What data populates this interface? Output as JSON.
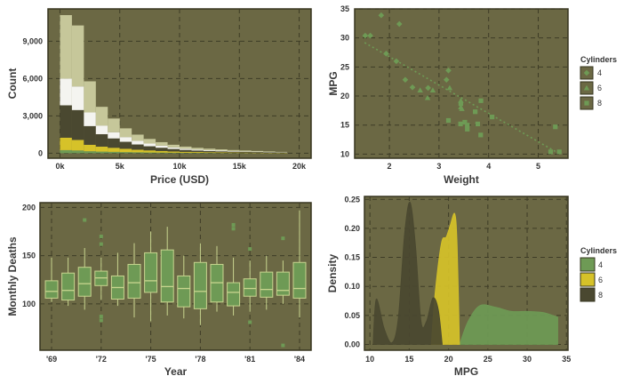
{
  "theme": {
    "panel_bg": "#6b6844",
    "panel_border": "#36341f",
    "grid": "#3e3c26",
    "green": "#6e9a55",
    "green_light": "#c8d58f",
    "yellow": "#d6c229",
    "dark": "#4a4830",
    "white": "#f4f4f0",
    "beige": "#c6c79a"
  },
  "chart_data": [
    {
      "type": "bar",
      "subtype": "stacked-histogram",
      "xlabel": "Price (USD)",
      "ylabel": "Count",
      "x_ticks": [
        0,
        5000,
        10000,
        15000,
        20000
      ],
      "x_tick_labels": [
        "0k",
        "5k",
        "10k",
        "15k",
        "20k"
      ],
      "y_ticks": [
        0,
        3000,
        6000,
        9000
      ],
      "y_tick_labels": [
        "0",
        "3,000",
        "6,000",
        "9,000"
      ],
      "xlim": [
        -1000,
        21000
      ],
      "ylim": [
        -400,
        11600
      ],
      "bin_width": 1000,
      "bin_starts": [
        0,
        1000,
        2000,
        3000,
        4000,
        5000,
        6000,
        7000,
        8000,
        9000,
        10000,
        11000,
        12000,
        13000,
        14000,
        15000,
        16000,
        17000,
        18000
      ],
      "series": [
        {
          "color": "green",
          "values": [
            250,
            220,
            160,
            130,
            110,
            90,
            75,
            60,
            50,
            42,
            35,
            30,
            25,
            20,
            18,
            15,
            12,
            10,
            8
          ]
        },
        {
          "color": "yellow",
          "values": [
            1000,
            850,
            520,
            400,
            330,
            270,
            210,
            170,
            130,
            100,
            80,
            65,
            55,
            45,
            40,
            35,
            30,
            25,
            18
          ]
        },
        {
          "color": "dark",
          "values": [
            2600,
            2400,
            1500,
            1000,
            750,
            560,
            420,
            330,
            260,
            200,
            150,
            120,
            100,
            85,
            70,
            60,
            50,
            40,
            30
          ]
        },
        {
          "color": "white",
          "values": [
            2150,
            1900,
            1100,
            700,
            500,
            380,
            290,
            220,
            170,
            130,
            100,
            80,
            70,
            60,
            50,
            40,
            35,
            30,
            22
          ]
        },
        {
          "color": "beige",
          "values": [
            5100,
            4900,
            2500,
            1500,
            1100,
            700,
            500,
            370,
            280,
            210,
            170,
            140,
            120,
            100,
            80,
            70,
            55,
            45,
            32
          ]
        }
      ]
    },
    {
      "type": "scatter",
      "xlabel": "Weight",
      "ylabel": "MPG",
      "x_ticks": [
        2,
        3,
        4,
        5
      ],
      "y_ticks": [
        10,
        15,
        20,
        25,
        30,
        35
      ],
      "xlim": [
        1.3,
        5.6
      ],
      "ylim": [
        9.3,
        35
      ],
      "legend_title": "Cylinders",
      "legend_labels": [
        "4",
        "6",
        "8"
      ],
      "legend_position": "right",
      "trend": {
        "x": [
          1.5,
          5.4
        ],
        "y": [
          29.2,
          10.2
        ]
      },
      "series": [
        {
          "name": "4",
          "marker": "diamond",
          "points": [
            [
              1.513,
              30.4
            ],
            [
              1.615,
              30.4
            ],
            [
              1.835,
              33.9
            ],
            [
              1.935,
              27.3
            ],
            [
              2.2,
              32.4
            ],
            [
              2.14,
              26.0
            ],
            [
              2.32,
              22.8
            ],
            [
              2.465,
              21.5
            ],
            [
              2.78,
              21.4
            ],
            [
              3.19,
              24.4
            ],
            [
              3.15,
              22.8
            ]
          ]
        },
        {
          "name": "6",
          "marker": "triangle",
          "points": [
            [
              2.62,
              21.0
            ],
            [
              2.875,
              21.0
            ],
            [
              2.77,
              19.7
            ],
            [
              3.215,
              21.4
            ],
            [
              3.44,
              18.1
            ],
            [
              3.44,
              19.2
            ],
            [
              3.46,
              17.8
            ]
          ]
        },
        {
          "name": "8",
          "marker": "square",
          "points": [
            [
              3.44,
              18.7
            ],
            [
              3.57,
              14.3
            ],
            [
              3.19,
              15.8
            ],
            [
              4.07,
              16.4
            ],
            [
              3.73,
              17.3
            ],
            [
              3.78,
              15.2
            ],
            [
              5.25,
              10.4
            ],
            [
              5.424,
              10.4
            ],
            [
              5.345,
              14.7
            ],
            [
              3.52,
              15.5
            ],
            [
              3.435,
              15.2
            ],
            [
              3.84,
              13.3
            ],
            [
              3.845,
              19.2
            ],
            [
              3.57,
              15.0
            ]
          ]
        }
      ]
    },
    {
      "type": "boxplot",
      "xlabel": "Year",
      "ylabel": "Monthly Deaths",
      "x_ticks": [
        1969,
        1972,
        1975,
        1978,
        1981,
        1984
      ],
      "x_tick_labels": [
        "'69",
        "'72",
        "'75",
        "'78",
        "'81",
        "'84"
      ],
      "y_ticks": [
        100,
        150,
        200
      ],
      "xlim": [
        1968.3,
        1984.7
      ],
      "ylim": [
        52,
        205
      ],
      "boxes": [
        {
          "x": 1969,
          "low": 102,
          "q1": 106,
          "median": 113,
          "q3": 124,
          "high": 148,
          "outliers": []
        },
        {
          "x": 1970,
          "low": 98,
          "q1": 104,
          "median": 114,
          "q3": 132,
          "high": 148,
          "outliers": []
        },
        {
          "x": 1971,
          "low": 94,
          "q1": 108,
          "median": 121,
          "q3": 138,
          "high": 158,
          "outliers": [
            187
          ]
        },
        {
          "x": 1972,
          "low": 104,
          "q1": 119,
          "median": 127,
          "q3": 134,
          "high": 148,
          "outliers": [
            170,
            162,
            87,
            83
          ]
        },
        {
          "x": 1973,
          "low": 98,
          "q1": 105,
          "median": 117,
          "q3": 129,
          "high": 153,
          "outliers": []
        },
        {
          "x": 1974,
          "low": 86,
          "q1": 106,
          "median": 122,
          "q3": 141,
          "high": 163,
          "outliers": []
        },
        {
          "x": 1975,
          "low": 82,
          "q1": 112,
          "median": 124,
          "q3": 153,
          "high": 175,
          "outliers": []
        },
        {
          "x": 1976,
          "low": 88,
          "q1": 102,
          "median": 118,
          "q3": 156,
          "high": 180,
          "outliers": []
        },
        {
          "x": 1977,
          "low": 85,
          "q1": 97,
          "median": 116,
          "q3": 129,
          "high": 150,
          "outliers": []
        },
        {
          "x": 1978,
          "low": 78,
          "q1": 95,
          "median": 113,
          "q3": 143,
          "high": 163,
          "outliers": []
        },
        {
          "x": 1979,
          "low": 92,
          "q1": 102,
          "median": 122,
          "q3": 141,
          "high": 160,
          "outliers": []
        },
        {
          "x": 1980,
          "low": 88,
          "q1": 98,
          "median": 112,
          "q3": 122,
          "high": 148,
          "outliers": [
            182,
            178
          ]
        },
        {
          "x": 1981,
          "low": 92,
          "q1": 108,
          "median": 116,
          "q3": 126,
          "high": 145,
          "outliers": [
            157,
            81
          ]
        },
        {
          "x": 1982,
          "low": 94,
          "q1": 107,
          "median": 115,
          "q3": 133,
          "high": 150,
          "outliers": []
        },
        {
          "x": 1983,
          "low": 100,
          "q1": 109,
          "median": 114,
          "q3": 133,
          "high": 145,
          "outliers": [
            168,
            57
          ]
        },
        {
          "x": 1984,
          "low": 86,
          "q1": 106,
          "median": 116,
          "q3": 143,
          "high": 197,
          "outliers": []
        }
      ]
    },
    {
      "type": "area",
      "subtype": "density",
      "xlabel": "MPG",
      "ylabel": "Density",
      "x_ticks": [
        10,
        15,
        20,
        25,
        30,
        35
      ],
      "y_ticks": [
        0,
        0.05,
        0.1,
        0.15,
        0.2,
        0.25
      ],
      "y_tick_labels": [
        "0.00",
        "0.05",
        "0.10",
        "0.15",
        "0.20",
        "0.25"
      ],
      "xlim": [
        9.3,
        35.2
      ],
      "ylim": [
        -0.01,
        0.255
      ],
      "legend_title": "Cylinders",
      "legend_labels": [
        "4",
        "6",
        "8"
      ],
      "legend_position": "right",
      "series": [
        {
          "name": "4",
          "color": "green",
          "x": [
            21.4,
            22.5,
            24,
            26,
            28,
            30,
            32,
            33.9
          ],
          "y": [
            0,
            0.04,
            0.067,
            0.064,
            0.057,
            0.057,
            0.055,
            0.047
          ]
        },
        {
          "name": "6",
          "color": "yellow",
          "x": [
            17.8,
            18.3,
            19.1,
            19.7,
            20.2,
            20.8,
            21.1,
            21.4
          ],
          "y": [
            0,
            0.09,
            0.175,
            0.185,
            0.205,
            0.225,
            0.17,
            0
          ]
        },
        {
          "name": "8",
          "color": "dark",
          "x": [
            10.4,
            10.8,
            11.8,
            12.8,
            13.6,
            14.4,
            15.1,
            15.8,
            16.5,
            17.2,
            18,
            18.7,
            19.2
          ],
          "y": [
            0,
            0.078,
            0.028,
            0.003,
            0.045,
            0.19,
            0.245,
            0.17,
            0.04,
            0.04,
            0.08,
            0.06,
            0
          ]
        }
      ]
    }
  ]
}
